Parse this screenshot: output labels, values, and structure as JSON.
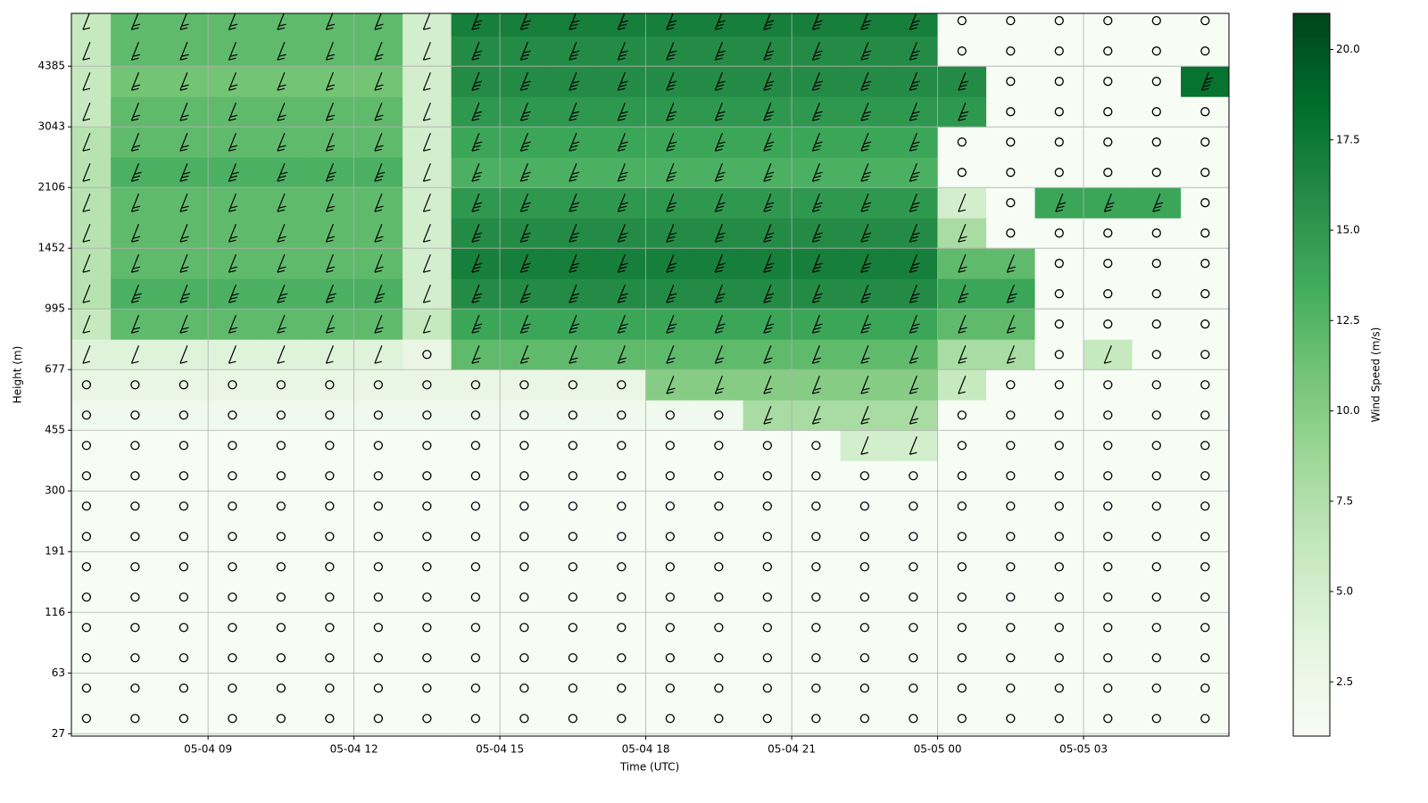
{
  "chart_data": {
    "type": "heatmap",
    "x_label": "Time (UTC)",
    "y_label": "Height (m)",
    "colorbar_label": "Wind Speed (m/s)",
    "colormap": "Greens",
    "clim": [
      1,
      21
    ],
    "grid": true,
    "xlim": [
      6.19,
      29.99
    ],
    "xticks": [
      {
        "value": 9,
        "label": "05-04 09"
      },
      {
        "value": 12,
        "label": "05-04 12"
      },
      {
        "value": 15,
        "label": "05-04 15"
      },
      {
        "value": 18,
        "label": "05-04 18"
      },
      {
        "value": 21,
        "label": "05-04 21"
      },
      {
        "value": 24,
        "label": "05-05 00"
      },
      {
        "value": 27,
        "label": "05-05 03"
      }
    ],
    "ylim": [
      -0.04,
      11.87
    ],
    "yticks": [
      {
        "value": 0,
        "label": "27"
      },
      {
        "value": 1,
        "label": "63"
      },
      {
        "value": 2,
        "label": "116"
      },
      {
        "value": 3,
        "label": "191"
      },
      {
        "value": 4,
        "label": "300"
      },
      {
        "value": 5,
        "label": "455"
      },
      {
        "value": 6,
        "label": "677"
      },
      {
        "value": 7,
        "label": "995"
      },
      {
        "value": 8,
        "label": "1452"
      },
      {
        "value": 9,
        "label": "2106"
      },
      {
        "value": 10,
        "label": "3043"
      },
      {
        "value": 11,
        "label": "4385"
      }
    ],
    "cticks": [
      2.5,
      {
        "value": 5,
        "label": "5.0"
      },
      {
        "value": 7.5,
        "label": "7.5"
      },
      {
        "value": 10,
        "label": "10.0"
      },
      {
        "value": 12.5,
        "label": "12.5"
      },
      {
        "value": 15,
        "label": "15.0"
      },
      {
        "value": 17.5,
        "label": "17.5"
      },
      {
        "value": 20,
        "label": "20.0"
      }
    ],
    "x": [
      6.5,
      7.5,
      8.5,
      9.5,
      10.5,
      11.5,
      12.5,
      13.5,
      14.5,
      15.5,
      16.5,
      17.5,
      18.5,
      19.5,
      20.5,
      21.5,
      22.5,
      23.5,
      24.5,
      25.5,
      26.5,
      27.5,
      28.5,
      29.5
    ],
    "y": [
      0.25,
      0.75,
      1.25,
      1.75,
      2.25,
      2.75,
      3.25,
      3.75,
      4.25,
      4.75,
      5.25,
      5.75,
      6.25,
      6.75,
      7.25,
      7.75,
      8.25,
      8.75,
      9.25,
      9.75,
      10.25,
      10.75,
      11.25,
      11.75
    ],
    "z": [
      [
        1,
        1,
        1,
        1,
        1,
        1,
        1,
        1,
        1,
        1,
        1,
        1,
        1,
        1,
        1,
        1,
        1,
        1,
        1,
        1,
        1,
        1,
        1,
        1
      ],
      [
        1,
        1,
        1,
        1,
        1,
        1,
        1,
        1,
        1,
        1,
        1,
        1,
        1,
        1,
        1,
        1,
        1,
        1,
        1,
        1,
        1,
        1,
        1,
        1
      ],
      [
        1,
        1,
        1,
        1,
        1,
        1,
        1,
        1,
        1,
        1,
        1,
        1,
        1,
        1,
        1,
        1,
        1,
        1,
        1,
        1,
        1,
        1,
        1,
        1
      ],
      [
        1,
        1,
        1,
        1,
        1,
        1,
        1,
        1,
        1,
        1,
        1,
        1,
        1,
        1,
        1,
        1,
        1,
        1,
        1,
        1,
        1,
        1,
        1,
        1
      ],
      [
        1,
        1,
        1,
        1,
        1,
        1,
        1,
        1,
        1,
        1,
        1,
        1,
        1,
        1,
        1,
        1,
        1,
        1,
        1,
        1,
        1,
        1,
        1,
        1
      ],
      [
        1,
        1,
        1,
        1,
        1,
        1,
        1,
        1,
        1,
        1,
        1,
        1,
        1,
        1,
        1,
        1,
        1,
        1,
        1,
        1,
        1,
        1,
        1,
        1
      ],
      [
        1,
        1,
        1,
        1,
        1,
        1,
        1,
        1,
        1,
        1,
        1,
        1,
        1,
        1,
        1,
        1,
        1,
        1,
        1,
        1,
        1,
        1,
        1,
        1
      ],
      [
        1,
        1,
        1,
        1,
        1,
        1,
        1,
        1,
        1,
        1,
        1,
        1,
        1,
        1,
        1,
        1,
        1,
        1,
        1,
        1,
        1,
        1,
        1,
        1
      ],
      [
        1,
        1,
        1,
        1,
        1,
        1,
        1,
        1,
        1,
        1,
        1,
        1,
        1,
        1,
        1,
        1,
        1,
        1,
        1,
        1,
        1,
        1,
        1,
        1
      ],
      [
        1,
        1,
        1,
        1,
        1,
        1,
        1,
        1,
        1,
        1,
        1,
        1,
        1,
        1,
        1,
        1,
        5,
        5,
        1,
        1,
        1,
        1,
        1,
        1
      ],
      [
        2,
        2,
        2,
        2,
        2,
        2,
        2,
        2,
        2,
        2,
        2,
        2,
        2,
        2,
        8,
        8,
        8,
        8,
        1,
        1,
        1,
        1,
        1,
        1
      ],
      [
        3,
        3,
        3,
        3,
        3,
        3,
        3,
        3,
        3,
        3,
        3,
        3,
        10,
        10,
        10,
        10,
        10,
        10,
        6,
        1,
        1,
        1,
        1,
        1
      ],
      [
        4,
        4,
        4,
        4,
        4,
        4,
        4,
        3,
        12,
        12,
        12,
        12,
        12,
        12,
        12,
        12,
        12,
        12,
        8,
        8,
        1,
        6,
        1,
        1
      ],
      [
        6,
        12,
        12,
        12,
        12,
        12,
        12,
        6,
        14,
        14,
        14,
        14,
        14,
        14,
        14,
        14,
        14,
        14,
        12,
        12,
        1,
        1,
        1,
        1
      ],
      [
        7,
        13,
        13,
        13,
        13,
        13,
        13,
        5,
        16,
        16,
        16,
        16,
        16,
        16,
        16,
        16,
        16,
        16,
        14,
        14,
        1,
        1,
        1,
        1
      ],
      [
        7,
        12,
        12,
        12,
        12,
        12,
        12,
        5,
        17,
        17,
        17,
        17,
        17,
        17,
        17,
        17,
        17,
        17,
        12,
        12,
        1,
        1,
        1,
        1
      ],
      [
        7,
        12,
        12,
        12,
        12,
        12,
        12,
        5,
        16,
        16,
        16,
        16,
        16,
        16,
        16,
        16,
        16,
        16,
        8,
        1,
        1,
        1,
        1,
        1
      ],
      [
        7,
        12,
        12,
        12,
        12,
        12,
        12,
        5,
        15,
        15,
        15,
        15,
        15,
        15,
        15,
        15,
        15,
        15,
        5,
        1,
        14,
        14,
        14,
        1
      ],
      [
        7,
        13,
        13,
        13,
        13,
        13,
        13,
        5,
        13,
        13,
        13,
        13,
        13,
        13,
        13,
        13,
        13,
        13,
        1,
        1,
        1,
        1,
        1,
        1
      ],
      [
        7,
        12,
        12,
        12,
        12,
        12,
        12,
        5,
        14,
        14,
        14,
        14,
        14,
        14,
        14,
        14,
        14,
        14,
        1,
        1,
        1,
        1,
        1,
        1
      ],
      [
        6,
        12,
        12,
        12,
        12,
        12,
        12,
        5,
        15,
        15,
        15,
        15,
        15,
        15,
        15,
        15,
        15,
        15,
        15,
        1,
        1,
        1,
        1,
        1
      ],
      [
        6,
        11,
        11,
        11,
        11,
        11,
        11,
        5,
        16,
        16,
        16,
        16,
        16,
        16,
        16,
        16,
        16,
        16,
        16,
        1,
        1,
        1,
        1,
        18
      ],
      [
        6,
        12,
        12,
        12,
        12,
        12,
        12,
        5,
        16,
        16,
        16,
        16,
        16,
        16,
        16,
        16,
        16,
        16,
        1,
        1,
        1,
        1,
        1,
        1
      ],
      [
        6,
        12,
        12,
        12,
        12,
        12,
        12,
        5,
        17,
        17,
        17,
        17,
        17,
        17,
        17,
        17,
        17,
        17,
        1,
        1,
        1,
        1,
        1,
        1
      ]
    ]
  }
}
